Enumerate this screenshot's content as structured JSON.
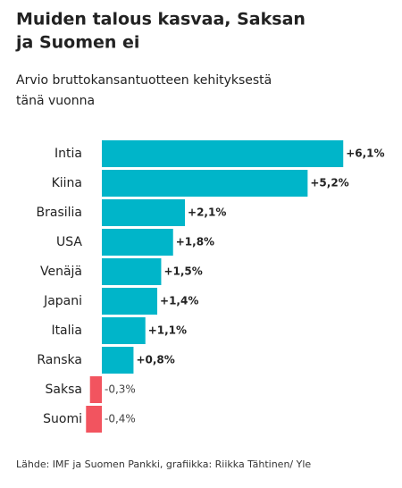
{
  "chart_data": {
    "type": "bar",
    "orientation": "horizontal",
    "title": [
      "Muiden talous kasvaa, Saksan",
      "ja Suomen ei"
    ],
    "subtitle": [
      "Arvio bruttokansantuotteen kehityksestä",
      "tänä vuonna"
    ],
    "categories": [
      "Intia",
      "Kiina",
      "Brasilia",
      "USA",
      "Venäjä",
      "Japani",
      "Italia",
      "Ranska",
      "Saksa",
      "Suomi"
    ],
    "values": [
      6.1,
      5.2,
      2.1,
      1.8,
      1.5,
      1.4,
      1.1,
      0.8,
      -0.3,
      -0.4
    ],
    "value_labels": [
      "+6,1%",
      "+5,2%",
      "+2,1%",
      "+1,8%",
      "+1,5%",
      "+1,4%",
      "+1,1%",
      "+0,8%",
      "-0,3%",
      "-0,4%"
    ],
    "colors": [
      "#00b5c9",
      "#00b5c9",
      "#00b5c9",
      "#00b5c9",
      "#00b5c9",
      "#00b5c9",
      "#00b5c9",
      "#00b5c9",
      "#f2545f",
      "#f2545f"
    ],
    "source": "Lähde: IMF ja Suomen Pankki, grafiikka: Riikka Tähtinen/ Yle"
  }
}
